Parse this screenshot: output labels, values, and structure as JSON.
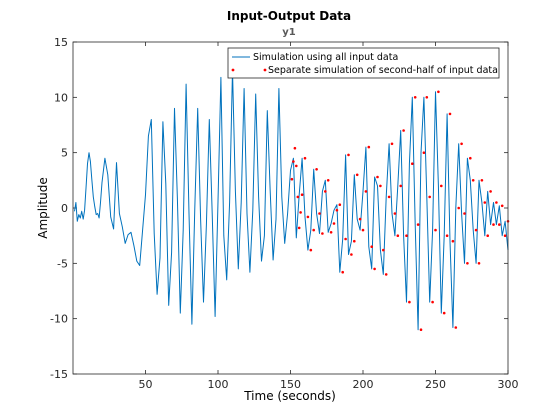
{
  "chart_data": {
    "type": "line",
    "title": "Input-Output Data",
    "subtitle": "y1",
    "xlabel": "Time (seconds)",
    "ylabel": "Amplitude",
    "xlim": [
      0,
      300
    ],
    "ylim": [
      -15,
      15
    ],
    "xticks": [
      50,
      100,
      150,
      200,
      250,
      300
    ],
    "yticks": [
      -15,
      -10,
      -5,
      0,
      5,
      10,
      15
    ],
    "legend_position": "top-right",
    "colors": {
      "line": "#0072BD",
      "points": "#FF0000",
      "axes": "#262626"
    },
    "series": [
      {
        "name": "Simulation using all input data",
        "style": "line",
        "x": [
          1,
          2,
          3,
          4,
          5,
          6,
          7,
          8,
          9,
          10,
          11,
          12,
          13,
          14,
          15,
          16,
          17,
          18,
          19,
          20,
          22,
          24,
          26,
          28,
          30,
          32,
          34,
          36,
          38,
          40,
          42,
          44,
          46,
          48,
          50,
          52,
          54,
          56,
          58,
          60,
          62,
          64,
          66,
          68,
          70,
          72,
          74,
          76,
          78,
          80,
          82,
          84,
          86,
          88,
          90,
          92,
          94,
          96,
          98,
          100,
          102,
          104,
          106,
          108,
          110,
          112,
          114,
          116,
          118,
          120,
          122,
          124,
          126,
          128,
          130,
          132,
          134,
          136,
          138,
          140,
          142,
          144,
          146,
          148,
          150,
          152,
          154,
          156,
          158,
          160,
          162,
          164,
          166,
          168,
          170,
          172,
          174,
          176,
          178,
          180,
          182,
          184,
          186,
          188,
          190,
          192,
          194,
          196,
          198,
          200,
          202,
          204,
          206,
          208,
          210,
          212,
          214,
          216,
          218,
          220,
          222,
          224,
          226,
          228,
          230,
          232,
          234,
          236,
          238,
          240,
          242,
          244,
          246,
          248,
          250,
          252,
          254,
          256,
          258,
          260,
          262,
          264,
          266,
          268,
          270,
          272,
          274,
          276,
          278,
          280,
          282,
          284,
          286,
          288,
          290,
          292,
          294,
          296,
          298,
          300
        ],
        "y": [
          -0.3,
          0.5,
          -1.2,
          -0.6,
          -0.9,
          -0.3,
          -1.0,
          -0.2,
          1.8,
          4.0,
          5.0,
          4.2,
          2.6,
          1.0,
          0.1,
          -0.6,
          -0.5,
          -0.9,
          0.5,
          2.3,
          4.5,
          3.0,
          -0.8,
          -1.9,
          4.1,
          -0.5,
          -1.7,
          -3.2,
          -2.4,
          -2.2,
          -3.4,
          -4.8,
          -5.2,
          -2.0,
          1.2,
          6.5,
          8.0,
          -2.3,
          -7.8,
          -4.5,
          7.8,
          2.2,
          -8.8,
          -4.0,
          9.0,
          0.8,
          -9.5,
          -2.0,
          11.2,
          -0.5,
          -10.5,
          0.0,
          9.0,
          -1.0,
          -8.5,
          -1.5,
          8.0,
          -0.5,
          -9.8,
          0.6,
          11.8,
          -2.5,
          -6.5,
          0.5,
          12.5,
          1.5,
          -5.5,
          0.5,
          10.8,
          -0.5,
          -5.8,
          -0.2,
          10.3,
          1.0,
          -4.8,
          -2.5,
          8.8,
          1.5,
          -4.7,
          -1.0,
          10.8,
          1.0,
          -3.2,
          -0.5,
          3.4,
          4.5,
          -2.7,
          1.2,
          4.5,
          -0.8,
          -3.8,
          -2.0,
          3.5,
          -0.5,
          -2.3,
          1.5,
          2.5,
          -2.2,
          -1.4,
          -0.2,
          0.3,
          -5.8,
          -2.8,
          4.8,
          -4.2,
          -3.0,
          3.0,
          -1.0,
          -2.0,
          1.5,
          5.5,
          -3.5,
          -5.5,
          2.8,
          2.0,
          -3.8,
          -6.0,
          1.0,
          5.8,
          -0.5,
          -2.5,
          2.0,
          7.0,
          -2.5,
          -8.5,
          4.0,
          10.0,
          -1.5,
          -11.0,
          5.0,
          10.0,
          1.0,
          -8.5,
          -2.0,
          10.5,
          2.0,
          -9.5,
          -2.5,
          8.5,
          -3.0,
          -10.8,
          0.0,
          5.8,
          -0.5,
          -5.0,
          4.5,
          2.5,
          -2.0,
          -5.0,
          2.5,
          0.5,
          -2.5,
          1.5,
          -1.5,
          0.5,
          -1.5,
          0.2,
          -2.5,
          -1.2,
          -3.8
        ]
      },
      {
        "name": "Separate simulation of second-half of input data",
        "style": "points",
        "x": [
          151,
          152,
          153,
          154,
          155,
          156,
          157,
          158,
          160,
          162,
          164,
          166,
          168,
          170,
          172,
          174,
          176,
          178,
          180,
          182,
          184,
          186,
          188,
          190,
          192,
          194,
          196,
          198,
          200,
          202,
          204,
          206,
          208,
          210,
          212,
          214,
          216,
          218,
          220,
          222,
          224,
          226,
          228,
          230,
          232,
          234,
          236,
          238,
          240,
          242,
          244,
          246,
          248,
          250,
          252,
          254,
          256,
          258,
          260,
          262,
          264,
          266,
          268,
          270,
          272,
          274,
          276,
          278,
          280,
          282,
          284,
          286,
          288,
          290,
          292,
          294,
          296,
          298,
          300
        ],
        "y": [
          2.6,
          4.2,
          5.4,
          3.8,
          1.0,
          -1.8,
          -0.4,
          1.2,
          4.5,
          -0.8,
          -3.8,
          -2.0,
          3.5,
          -0.5,
          -2.3,
          1.5,
          2.5,
          -2.2,
          -1.4,
          -0.2,
          0.3,
          -5.8,
          -2.8,
          4.8,
          -4.2,
          -3.0,
          3.0,
          -1.0,
          -2.0,
          1.5,
          5.5,
          -3.5,
          -5.5,
          2.8,
          2.0,
          -3.8,
          -6.0,
          1.0,
          5.8,
          -0.5,
          -2.5,
          2.0,
          7.0,
          -2.5,
          -8.5,
          4.0,
          10.0,
          -1.5,
          -11.0,
          5.0,
          10.0,
          1.0,
          -8.5,
          -2.0,
          10.5,
          2.0,
          -9.5,
          -2.5,
          8.5,
          -3.0,
          -10.8,
          0.0,
          5.8,
          -0.5,
          -5.0,
          4.5,
          2.5,
          -2.0,
          -5.0,
          2.5,
          0.5,
          -2.5,
          1.5,
          -1.5,
          0.5,
          -1.5,
          0.2,
          -2.5,
          -1.2
        ]
      }
    ]
  }
}
